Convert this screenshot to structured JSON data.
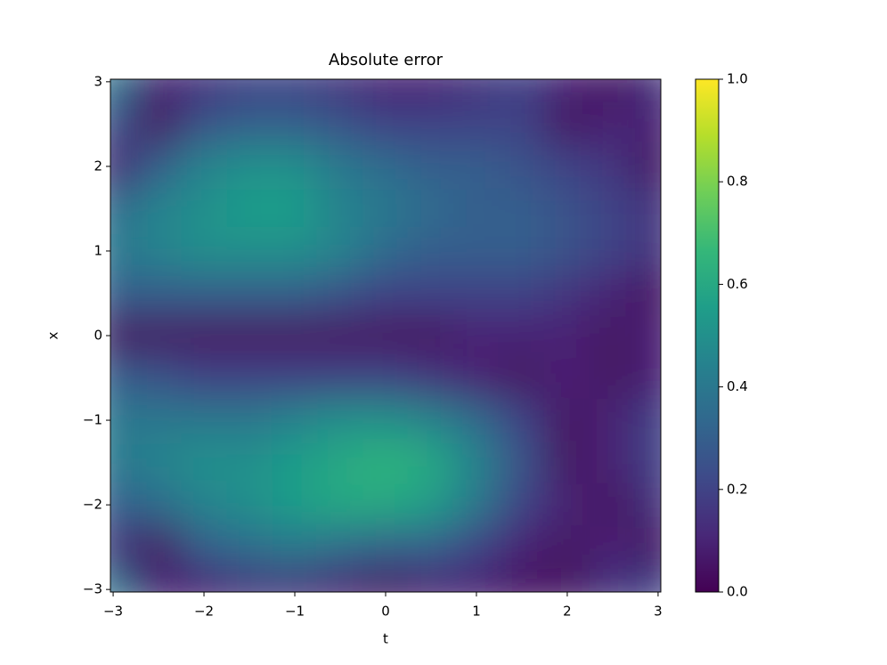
{
  "chart_data": {
    "type": "heatmap",
    "title": "Absolute error",
    "x_label": "t",
    "y_label": "x",
    "colormap": "viridis",
    "x": [
      -3,
      -2.5,
      -2,
      -1.5,
      -1,
      -0.5,
      0,
      0.5,
      1,
      1.5,
      2,
      2.5,
      3
    ],
    "y": [
      3,
      2.5,
      2,
      1.5,
      1,
      0.5,
      0,
      -0.5,
      -1,
      -1.5,
      -2,
      -2.5,
      -3
    ],
    "values": [
      [
        0.4,
        0.1,
        0.15,
        0.2,
        0.2,
        0.15,
        0.1,
        0.1,
        0.15,
        0.2,
        0.1,
        0.05,
        0.15
      ],
      [
        0.25,
        0.05,
        0.25,
        0.3,
        0.3,
        0.25,
        0.2,
        0.2,
        0.2,
        0.2,
        0.05,
        0.1,
        0.1
      ],
      [
        0.1,
        0.3,
        0.45,
        0.5,
        0.5,
        0.4,
        0.35,
        0.3,
        0.3,
        0.25,
        0.2,
        0.15,
        0.05
      ],
      [
        0.35,
        0.45,
        0.5,
        0.55,
        0.55,
        0.45,
        0.4,
        0.35,
        0.3,
        0.3,
        0.25,
        0.2,
        0.15
      ],
      [
        0.4,
        0.45,
        0.5,
        0.5,
        0.5,
        0.45,
        0.35,
        0.3,
        0.3,
        0.3,
        0.25,
        0.2,
        0.15
      ],
      [
        0.3,
        0.3,
        0.3,
        0.3,
        0.3,
        0.25,
        0.2,
        0.2,
        0.2,
        0.2,
        0.15,
        0.1,
        0.05
      ],
      [
        0.05,
        0.05,
        0.05,
        0.05,
        0.05,
        0.05,
        0.05,
        0.05,
        0.1,
        0.1,
        0.1,
        0.05,
        0.1
      ],
      [
        0.3,
        0.25,
        0.2,
        0.2,
        0.2,
        0.2,
        0.2,
        0.15,
        0.1,
        0.05,
        0.1,
        0.05,
        0.1
      ],
      [
        0.4,
        0.4,
        0.4,
        0.4,
        0.45,
        0.5,
        0.5,
        0.45,
        0.35,
        0.2,
        0.05,
        0.1,
        0.2
      ],
      [
        0.4,
        0.45,
        0.5,
        0.5,
        0.55,
        0.6,
        0.65,
        0.6,
        0.45,
        0.25,
        0.05,
        0.1,
        0.2
      ],
      [
        0.3,
        0.35,
        0.45,
        0.5,
        0.55,
        0.6,
        0.6,
        0.55,
        0.4,
        0.2,
        0.1,
        0.05,
        0.15
      ],
      [
        0.15,
        0.05,
        0.3,
        0.35,
        0.4,
        0.35,
        0.3,
        0.3,
        0.2,
        0.1,
        0.05,
        0.1,
        0.05
      ],
      [
        0.4,
        0.1,
        0.1,
        0.15,
        0.15,
        0.1,
        0.05,
        0.1,
        0.1,
        0.05,
        0.05,
        0.15,
        0.2
      ]
    ],
    "xlim": [
      -3.03,
      3.03
    ],
    "ylim": [
      -3.03,
      3.03
    ],
    "xticks": [
      {
        "value": -3,
        "label": "−3"
      },
      {
        "value": -2,
        "label": "−2"
      },
      {
        "value": -1,
        "label": "−1"
      },
      0,
      1,
      2,
      3
    ],
    "yticks": [
      {
        "value": -3,
        "label": "−3"
      },
      {
        "value": -2,
        "label": "−2"
      },
      {
        "value": -1,
        "label": "−1"
      },
      0,
      1,
      2,
      3
    ],
    "clim": [
      0,
      1
    ],
    "cticks": [
      {
        "value": 0,
        "label": "0.0"
      },
      0.2,
      0.4,
      0.6,
      0.8,
      {
        "value": 1,
        "label": "1.0"
      }
    ]
  }
}
